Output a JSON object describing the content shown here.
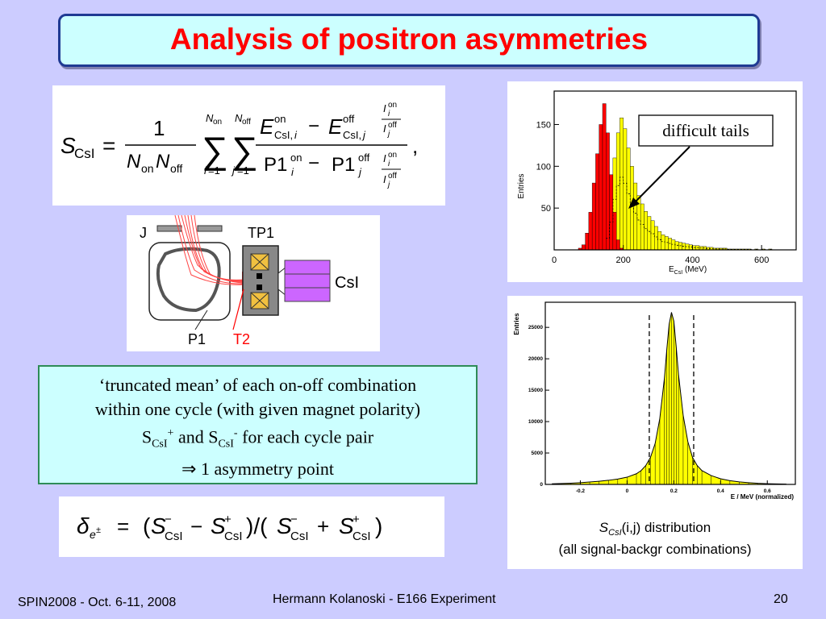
{
  "slide": {
    "title": "Analysis of positron asymmetries",
    "footer_left": "SPIN2008 - Oct. 6-11, 2008",
    "footer_center": "Hermann Kolanoski - E166 Experiment",
    "footer_right": "20"
  },
  "textbox": {
    "line1": "‘truncated mean’ of each on-off combination",
    "line2": "within one cycle (with given magnet polarity)",
    "line3_s": "S",
    "line3_sub": "CsI",
    "line3_sup_plus": "+",
    "line3_and": " and S",
    "line3_sup_minus": "-",
    "line3_end": "  for each cycle pair",
    "line4": "⇒ 1 asymmetry point"
  },
  "detector": {
    "label_j": "J",
    "label_tp1": "TP1",
    "label_csi": "CsI",
    "label_p1": "P1",
    "label_t2": "T2"
  },
  "caption2": {
    "s": "S",
    "sub": "CsI",
    "args": "(i,j)",
    "rest": " distribution",
    "line2": "(all signal-backgr combinations)"
  },
  "chart_data": [
    {
      "type": "bar",
      "annotation": "difficult tails",
      "xlabel_main": "E",
      "xlabel_sub": "CsI",
      "xlabel_unit": " (MeV)",
      "ylabel": "Entries",
      "xlim": [
        0,
        700
      ],
      "ylim": [
        0,
        190
      ],
      "xticks": [
        0,
        200,
        400,
        600
      ],
      "yticks": [
        50,
        100,
        150
      ],
      "bin_width": 10,
      "series": [
        {
          "color": "#ff0000",
          "x": [
            70,
            80,
            90,
            100,
            110,
            120,
            130,
            140,
            150,
            160,
            170,
            180,
            190
          ],
          "values": [
            2,
            6,
            20,
            45,
            80,
            115,
            150,
            175,
            140,
            90,
            45,
            12,
            2
          ]
        },
        {
          "color": "#ffff00",
          "x": [
            150,
            160,
            170,
            180,
            190,
            200,
            210,
            220,
            230,
            240,
            250,
            260,
            270,
            280,
            290,
            300,
            310,
            320,
            330,
            340,
            350,
            360,
            370,
            380,
            390,
            400,
            410,
            420,
            430,
            440,
            450,
            460,
            470,
            480,
            490,
            500,
            510,
            520,
            530,
            540,
            550,
            560,
            570,
            580,
            590,
            600,
            610,
            620
          ],
          "values": [
            25,
            60,
            110,
            140,
            158,
            145,
            122,
            100,
            80,
            65,
            55,
            46,
            40,
            35,
            28,
            22,
            18,
            16,
            14,
            12,
            10,
            9,
            8,
            7,
            6,
            5,
            5,
            4,
            4,
            3,
            3,
            2,
            2,
            2,
            2,
            1,
            1,
            1,
            1,
            1,
            1,
            1,
            0,
            1,
            0,
            1,
            0,
            1
          ]
        }
      ]
    },
    {
      "type": "area",
      "xlabel": "E / MeV (normalized)",
      "ylabel": "Entries",
      "xlim": [
        -0.35,
        0.72
      ],
      "ylim": [
        0,
        29000
      ],
      "xticks": [
        -0.2,
        0,
        0.2,
        0.4,
        0.6
      ],
      "xtick_labels": [
        "-0.2",
        "0",
        "0.2",
        "0.4",
        "0.6"
      ],
      "yticks": [
        0,
        5000,
        10000,
        15000,
        20000,
        25000
      ],
      "cut_lines": [
        0.095,
        0.285
      ],
      "peak": 0.19,
      "x": [
        -0.32,
        -0.28,
        -0.24,
        -0.2,
        -0.16,
        -0.12,
        -0.08,
        -0.04,
        0,
        0.04,
        0.06,
        0.08,
        0.1,
        0.12,
        0.14,
        0.16,
        0.17,
        0.18,
        0.19,
        0.2,
        0.21,
        0.22,
        0.24,
        0.26,
        0.28,
        0.3,
        0.32,
        0.36,
        0.4,
        0.44,
        0.48,
        0.52,
        0.56,
        0.6,
        0.64,
        0.68
      ],
      "values": [
        100,
        150,
        200,
        280,
        380,
        500,
        650,
        850,
        1150,
        1700,
        2200,
        3000,
        4300,
        6500,
        10500,
        17000,
        21500,
        25500,
        27400,
        26000,
        22000,
        17500,
        11000,
        6800,
        4300,
        3000,
        2200,
        1400,
        900,
        600,
        400,
        280,
        180,
        120,
        80,
        50
      ]
    }
  ]
}
